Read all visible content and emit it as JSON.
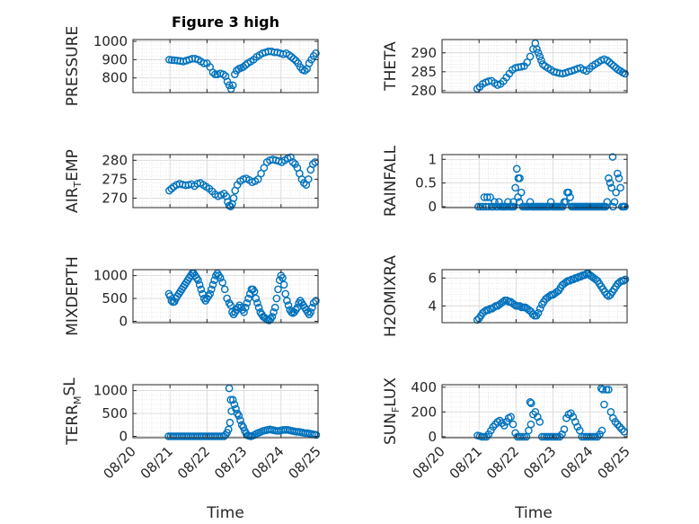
{
  "figure": {
    "title": "Figure 3 high",
    "time_label": "Time"
  },
  "colors": {
    "marker": "#0072BD",
    "axis": "#262626",
    "grid": "#d9d9d9",
    "plot_bg": "#ffffff"
  },
  "chart_data": [
    {
      "type": "scatter",
      "ylabel_html": "PRESSURE",
      "xlim": [
        "08/20",
        "08/25"
      ],
      "ylim": [
        720,
        1010
      ],
      "yticks": [
        800,
        900,
        1000
      ],
      "x": [
        0.98,
        1.05,
        1.12,
        1.2,
        1.28,
        1.36,
        1.44,
        1.52,
        1.6,
        1.68,
        1.76,
        1.84,
        1.92,
        2.0,
        2.08,
        2.16,
        2.22,
        2.28,
        2.36,
        2.44,
        2.5,
        2.55,
        2.6,
        2.65,
        2.7,
        2.75,
        2.8,
        2.86,
        2.92,
        2.98,
        3.04,
        3.1,
        3.18,
        3.26,
        3.34,
        3.42,
        3.5,
        3.58,
        3.66,
        3.74,
        3.82,
        3.9,
        3.98,
        4.06,
        4.14,
        4.22,
        4.28,
        4.34,
        4.4,
        4.46,
        4.52,
        4.58,
        4.64,
        4.7,
        4.76,
        4.82,
        4.88,
        4.94
      ],
      "y": [
        900,
        898,
        897,
        895,
        893,
        890,
        895,
        900,
        905,
        905,
        900,
        890,
        880,
        880,
        860,
        830,
        820,
        820,
        825,
        820,
        810,
        780,
        760,
        740,
        760,
        820,
        840,
        850,
        855,
        860,
        870,
        880,
        890,
        900,
        915,
        925,
        935,
        940,
        945,
        945,
        940,
        940,
        935,
        930,
        935,
        925,
        915,
        905,
        895,
        880,
        860,
        845,
        840,
        850,
        880,
        900,
        920,
        935
      ]
    },
    {
      "type": "scatter",
      "ylabel_html": "THETA",
      "xlim": [
        "08/20",
        "08/25"
      ],
      "ylim": [
        279.5,
        293.5
      ],
      "yticks": [
        280,
        285,
        290
      ],
      "x": [
        0.95,
        1.02,
        1.1,
        1.18,
        1.26,
        1.34,
        1.42,
        1.5,
        1.58,
        1.66,
        1.74,
        1.82,
        1.9,
        1.98,
        2.06,
        2.14,
        2.22,
        2.3,
        2.38,
        2.46,
        2.52,
        2.56,
        2.6,
        2.64,
        2.68,
        2.72,
        2.78,
        2.86,
        2.94,
        3.02,
        3.1,
        3.18,
        3.26,
        3.34,
        3.42,
        3.5,
        3.58,
        3.66,
        3.74,
        3.82,
        3.9,
        3.98,
        4.06,
        4.14,
        4.22,
        4.3,
        4.38,
        4.46,
        4.52,
        4.58,
        4.64,
        4.7,
        4.76,
        4.82,
        4.88,
        4.94
      ],
      "y": [
        280.5,
        281,
        281.8,
        282.2,
        282.5,
        282.6,
        282,
        281.5,
        281.8,
        282.5,
        283.5,
        284.5,
        285.5,
        286,
        286.2,
        286.3,
        286.5,
        287.5,
        289,
        291,
        292.5,
        291,
        290,
        289,
        288,
        287,
        286.5,
        286,
        285.5,
        285,
        284.8,
        284.6,
        284.5,
        284.7,
        285,
        285.2,
        285.5,
        285.8,
        286,
        285.5,
        285.2,
        285.8,
        286.5,
        287,
        287.5,
        288,
        288.3,
        288,
        287.5,
        287,
        286.5,
        286,
        285.5,
        285.2,
        284.8,
        284.5
      ]
    },
    {
      "type": "scatter",
      "ylabel_html": "AIR<tspan class=\"sub\" dy=\"4\">T</tspan><tspan dy=\"-4\">EMP</tspan>",
      "xlim": [
        "08/20",
        "08/25"
      ],
      "ylim": [
        267.5,
        281.5
      ],
      "yticks": [
        270,
        275,
        280
      ],
      "x": [
        0.98,
        1.04,
        1.1,
        1.18,
        1.26,
        1.34,
        1.42,
        1.5,
        1.58,
        1.66,
        1.74,
        1.82,
        1.9,
        1.98,
        2.06,
        2.14,
        2.22,
        2.3,
        2.38,
        2.46,
        2.52,
        2.56,
        2.6,
        2.64,
        2.68,
        2.72,
        2.76,
        2.82,
        2.9,
        2.98,
        3.06,
        3.14,
        3.22,
        3.3,
        3.38,
        3.46,
        3.54,
        3.62,
        3.7,
        3.78,
        3.86,
        3.94,
        4.02,
        4.1,
        4.18,
        4.26,
        4.32,
        4.38,
        4.44,
        4.5,
        4.56,
        4.62,
        4.68,
        4.74,
        4.8,
        4.86,
        4.92
      ],
      "y": [
        272,
        272.5,
        273,
        273.5,
        273.8,
        273.6,
        273.4,
        273.5,
        273.7,
        273.2,
        273.8,
        274,
        273.5,
        273,
        272.5,
        271.8,
        271,
        270.5,
        270.8,
        271.2,
        270.5,
        269,
        268,
        267.8,
        268.5,
        270,
        272,
        273.5,
        274.5,
        275,
        275.2,
        274.8,
        274.2,
        274.5,
        275,
        276.5,
        278,
        279.5,
        280,
        280.2,
        280,
        279.8,
        279.5,
        280,
        280.5,
        280.8,
        279.5,
        279,
        278,
        276.5,
        275,
        274,
        273.5,
        275,
        277.5,
        279,
        279.5
      ]
    },
    {
      "type": "scatter",
      "ylabel_html": "RAINFALL",
      "xlim": [
        "08/20",
        "08/25"
      ],
      "ylim": [
        -0.02,
        1.1
      ],
      "yticks": [
        0,
        0.5,
        1
      ],
      "x": [
        0.98,
        1.04,
        1.1,
        1.14,
        1.18,
        1.22,
        1.26,
        1.3,
        1.34,
        1.38,
        1.42,
        1.46,
        1.5,
        1.54,
        1.58,
        1.62,
        1.66,
        1.7,
        1.74,
        1.78,
        1.82,
        1.86,
        1.9,
        1.94,
        1.98,
        2.02,
        2.06,
        2.1,
        2.14,
        2.18,
        2.22,
        2.26,
        2.3,
        2.34,
        2.38,
        2.42,
        2.46,
        2.5,
        2.54,
        2.58,
        2.62,
        2.66,
        2.7,
        2.74,
        2.78,
        2.82,
        2.86,
        2.9,
        2.94,
        2.98,
        3.02,
        3.06,
        3.1,
        3.14,
        3.18,
        3.22,
        3.26,
        3.3,
        3.34,
        3.38,
        3.42,
        3.46,
        3.5,
        3.54,
        3.58,
        3.62,
        3.66,
        3.7,
        3.74,
        3.78,
        3.82,
        3.86,
        3.9,
        3.94,
        3.98,
        4.02,
        4.06,
        4.1,
        4.14,
        4.18,
        4.22,
        4.26,
        4.3,
        4.34,
        4.38,
        4.42,
        4.46,
        4.5,
        4.54,
        4.58,
        4.62,
        4.66,
        4.7,
        4.74,
        4.78,
        4.82,
        4.86,
        4.9,
        4.94,
        2.05,
        1.93,
        2.09,
        4.61
      ],
      "y": [
        0,
        0,
        0,
        0.2,
        0,
        0.2,
        0,
        0.2,
        0,
        0,
        0.1,
        0,
        0,
        0.1,
        0,
        0,
        0,
        0,
        0,
        0.1,
        0,
        0,
        0,
        0,
        0.4,
        0.8,
        0.6,
        0.6,
        0.3,
        0,
        0,
        0,
        0,
        0,
        0.1,
        0,
        0,
        0,
        0,
        0,
        0,
        0,
        0,
        0,
        0,
        0,
        0,
        0,
        0.1,
        0,
        0,
        0,
        0,
        0,
        0,
        0,
        0,
        0.1,
        0.1,
        0.3,
        0.3,
        0.2,
        0,
        0,
        0,
        0,
        0,
        0,
        0,
        0,
        0,
        0,
        0,
        0,
        0,
        0,
        0,
        0,
        0,
        0,
        0,
        0,
        0,
        0,
        0,
        0,
        0.1,
        0.6,
        0.5,
        0.4,
        0,
        0.1,
        0.3,
        0.7,
        0.6,
        0.4,
        0,
        0,
        0,
        0.2,
        0.1,
        0.1,
        1.05
      ]
    },
    {
      "type": "scatter",
      "ylabel_html": "MIXDEPTH",
      "xlim": [
        "08/20",
        "08/25"
      ],
      "ylim": [
        -30,
        1130
      ],
      "yticks": [
        0,
        500,
        1000
      ],
      "x": [
        0.97,
        1.0,
        1.04,
        1.08,
        1.12,
        1.16,
        1.2,
        1.24,
        1.28,
        1.32,
        1.36,
        1.4,
        1.44,
        1.48,
        1.52,
        1.56,
        1.6,
        1.64,
        1.68,
        1.72,
        1.76,
        1.8,
        1.84,
        1.88,
        1.92,
        1.96,
        2.0,
        2.04,
        2.08,
        2.12,
        2.16,
        2.2,
        2.24,
        2.28,
        2.32,
        2.36,
        2.42,
        2.48,
        2.54,
        2.6,
        2.64,
        2.68,
        2.72,
        2.76,
        2.8,
        2.84,
        2.88,
        2.92,
        2.96,
        3.0,
        3.04,
        3.08,
        3.12,
        3.16,
        3.2,
        3.24,
        3.28,
        3.32,
        3.36,
        3.4,
        3.44,
        3.48,
        3.52,
        3.56,
        3.6,
        3.64,
        3.68,
        3.72,
        3.76,
        3.8,
        3.84,
        3.88,
        3.92,
        3.96,
        4.0,
        4.04,
        4.08,
        4.12,
        4.16,
        4.2,
        4.24,
        4.28,
        4.32,
        4.36,
        4.4,
        4.44,
        4.48,
        4.52,
        4.56,
        4.6,
        4.64,
        4.68,
        4.72,
        4.76,
        4.8,
        4.84,
        4.88,
        4.94
      ],
      "y": [
        600,
        550,
        450,
        420,
        430,
        500,
        550,
        600,
        650,
        700,
        750,
        800,
        850,
        900,
        950,
        1000,
        1050,
        1050,
        1000,
        950,
        900,
        800,
        700,
        600,
        500,
        450,
        500,
        550,
        600,
        700,
        800,
        900,
        1000,
        1050,
        1000,
        950,
        850,
        700,
        500,
        400,
        350,
        200,
        150,
        200,
        250,
        300,
        350,
        300,
        250,
        200,
        300,
        400,
        500,
        600,
        700,
        700,
        650,
        500,
        400,
        300,
        200,
        150,
        100,
        80,
        50,
        30,
        20,
        50,
        100,
        200,
        300,
        500,
        700,
        900,
        1000,
        950,
        800,
        600,
        450,
        350,
        250,
        200,
        180,
        200,
        250,
        300,
        400,
        450,
        400,
        350,
        300,
        250,
        200,
        150,
        200,
        300,
        400,
        450
      ]
    },
    {
      "type": "scatter",
      "ylabel_html": "H2OMIXRA",
      "xlim": [
        "08/20",
        "08/25"
      ],
      "ylim": [
        2.8,
        6.6
      ],
      "yticks": [
        4,
        6
      ],
      "x": [
        0.95,
        1.0,
        1.05,
        1.1,
        1.15,
        1.2,
        1.25,
        1.3,
        1.35,
        1.4,
        1.45,
        1.5,
        1.55,
        1.6,
        1.65,
        1.7,
        1.75,
        1.8,
        1.85,
        1.9,
        1.95,
        2.0,
        2.05,
        2.1,
        2.15,
        2.2,
        2.25,
        2.3,
        2.35,
        2.4,
        2.45,
        2.5,
        2.55,
        2.6,
        2.65,
        2.7,
        2.75,
        2.8,
        2.85,
        2.9,
        2.95,
        3.0,
        3.05,
        3.1,
        3.15,
        3.2,
        3.25,
        3.3,
        3.35,
        3.4,
        3.45,
        3.5,
        3.55,
        3.6,
        3.65,
        3.7,
        3.75,
        3.8,
        3.85,
        3.9,
        3.95,
        4.0,
        4.05,
        4.1,
        4.15,
        4.2,
        4.25,
        4.3,
        4.35,
        4.4,
        4.45,
        4.5,
        4.55,
        4.6,
        4.65,
        4.7,
        4.75,
        4.8,
        4.85,
        4.9,
        4.95
      ],
      "y": [
        3.0,
        3.1,
        3.3,
        3.5,
        3.6,
        3.7,
        3.7,
        3.8,
        3.8,
        3.9,
        4.0,
        4.0,
        4.1,
        4.2,
        4.3,
        4.4,
        4.4,
        4.3,
        4.3,
        4.2,
        4.1,
        4.0,
        4.0,
        4.0,
        3.9,
        3.9,
        3.9,
        3.8,
        3.7,
        3.6,
        3.4,
        3.3,
        3.3,
        3.5,
        3.8,
        4.1,
        4.3,
        4.5,
        4.6,
        4.7,
        4.8,
        4.8,
        4.9,
        5.0,
        5.1,
        5.3,
        5.5,
        5.6,
        5.7,
        5.8,
        5.8,
        5.9,
        5.9,
        6.0,
        6.0,
        6.1,
        6.1,
        6.2,
        6.2,
        6.3,
        6.3,
        6.2,
        6.1,
        6.0,
        5.9,
        5.8,
        5.6,
        5.4,
        5.2,
        5.0,
        4.8,
        4.7,
        4.8,
        5.0,
        5.2,
        5.4,
        5.6,
        5.7,
        5.8,
        5.8,
        5.9
      ]
    },
    {
      "type": "scatter",
      "ylabel_html": "TERR<tspan class=\"sub\" dy=\"4\">M</tspan><tspan dy=\"-7\">SL</tspan>",
      "xlim": [
        "08/20",
        "08/25"
      ],
      "ylim": [
        -30,
        1130
      ],
      "yticks": [
        0,
        500,
        1000
      ],
      "x": [
        0.96,
        1.02,
        1.08,
        1.14,
        1.2,
        1.26,
        1.32,
        1.38,
        1.44,
        1.5,
        1.56,
        1.62,
        1.68,
        1.74,
        1.8,
        1.86,
        1.92,
        1.98,
        2.04,
        2.1,
        2.16,
        2.22,
        2.28,
        2.34,
        2.4,
        2.46,
        2.5,
        2.54,
        2.58,
        2.62,
        2.66,
        2.7,
        2.74,
        2.78,
        2.82,
        2.86,
        2.9,
        2.94,
        2.98,
        3.02,
        3.06,
        3.1,
        3.14,
        3.18,
        3.22,
        3.28,
        3.34,
        3.4,
        3.46,
        3.52,
        3.58,
        3.64,
        3.7,
        3.76,
        3.82,
        3.88,
        3.94,
        4.0,
        4.06,
        4.12,
        4.18,
        4.24,
        4.3,
        4.36,
        4.42,
        4.48,
        4.54,
        4.6,
        4.66,
        4.72,
        4.78,
        4.84,
        4.9,
        4.95,
        2.6,
        2.64
      ],
      "y": [
        0,
        0,
        0,
        0,
        0,
        0,
        0,
        0,
        0,
        0,
        0,
        0,
        0,
        0,
        0,
        0,
        0,
        0,
        0,
        0,
        0,
        0,
        0,
        0,
        0,
        0,
        30,
        80,
        150,
        300,
        550,
        800,
        700,
        600,
        500,
        450,
        350,
        250,
        200,
        120,
        60,
        20,
        10,
        0,
        10,
        30,
        60,
        80,
        100,
        120,
        130,
        140,
        150,
        140,
        130,
        120,
        120,
        130,
        140,
        140,
        140,
        130,
        120,
        110,
        100,
        100,
        90,
        80,
        70,
        70,
        60,
        50,
        40,
        30,
        1050,
        800
      ]
    },
    {
      "type": "scatter",
      "ylabel_html": "SUN<tspan class=\"sub\" dy=\"4\">F</tspan><tspan dy=\"-4\">LUX</tspan>",
      "xlim": [
        "08/20",
        "08/25"
      ],
      "ylim": [
        -8,
        420
      ],
      "yticks": [
        0,
        200,
        400
      ],
      "x": [
        0.96,
        1.02,
        1.08,
        1.14,
        1.2,
        1.26,
        1.32,
        1.38,
        1.44,
        1.5,
        1.56,
        1.62,
        1.68,
        1.74,
        1.8,
        1.86,
        1.92,
        1.98,
        2.04,
        2.1,
        2.16,
        2.22,
        2.28,
        2.34,
        2.4,
        2.46,
        2.52,
        2.58,
        2.64,
        2.7,
        2.76,
        2.82,
        2.88,
        2.94,
        3.0,
        3.06,
        3.12,
        3.18,
        3.24,
        3.3,
        3.36,
        3.42,
        3.48,
        3.54,
        3.6,
        3.66,
        3.72,
        3.78,
        3.84,
        3.9,
        3.96,
        4.02,
        4.08,
        4.14,
        4.2,
        4.26,
        4.32,
        4.38,
        4.44,
        4.5,
        4.56,
        4.62,
        4.68,
        4.74,
        4.8,
        4.86,
        4.92,
        2.38,
        2.41,
        4.3,
        4.34
      ],
      "y": [
        10,
        5,
        0,
        0,
        0,
        20,
        50,
        80,
        100,
        120,
        130,
        110,
        90,
        120,
        150,
        160,
        100,
        30,
        0,
        0,
        0,
        0,
        0,
        50,
        100,
        180,
        200,
        160,
        120,
        0,
        0,
        0,
        0,
        0,
        0,
        0,
        0,
        0,
        20,
        60,
        150,
        180,
        190,
        160,
        120,
        80,
        50,
        0,
        0,
        0,
        0,
        0,
        0,
        0,
        0,
        20,
        50,
        260,
        380,
        380,
        200,
        150,
        120,
        100,
        80,
        60,
        40,
        280,
        270,
        390,
        380
      ]
    }
  ],
  "x_axis": {
    "ticks": [
      "08/20",
      "08/21",
      "08/22",
      "08/23",
      "08/24",
      "08/25"
    ]
  }
}
